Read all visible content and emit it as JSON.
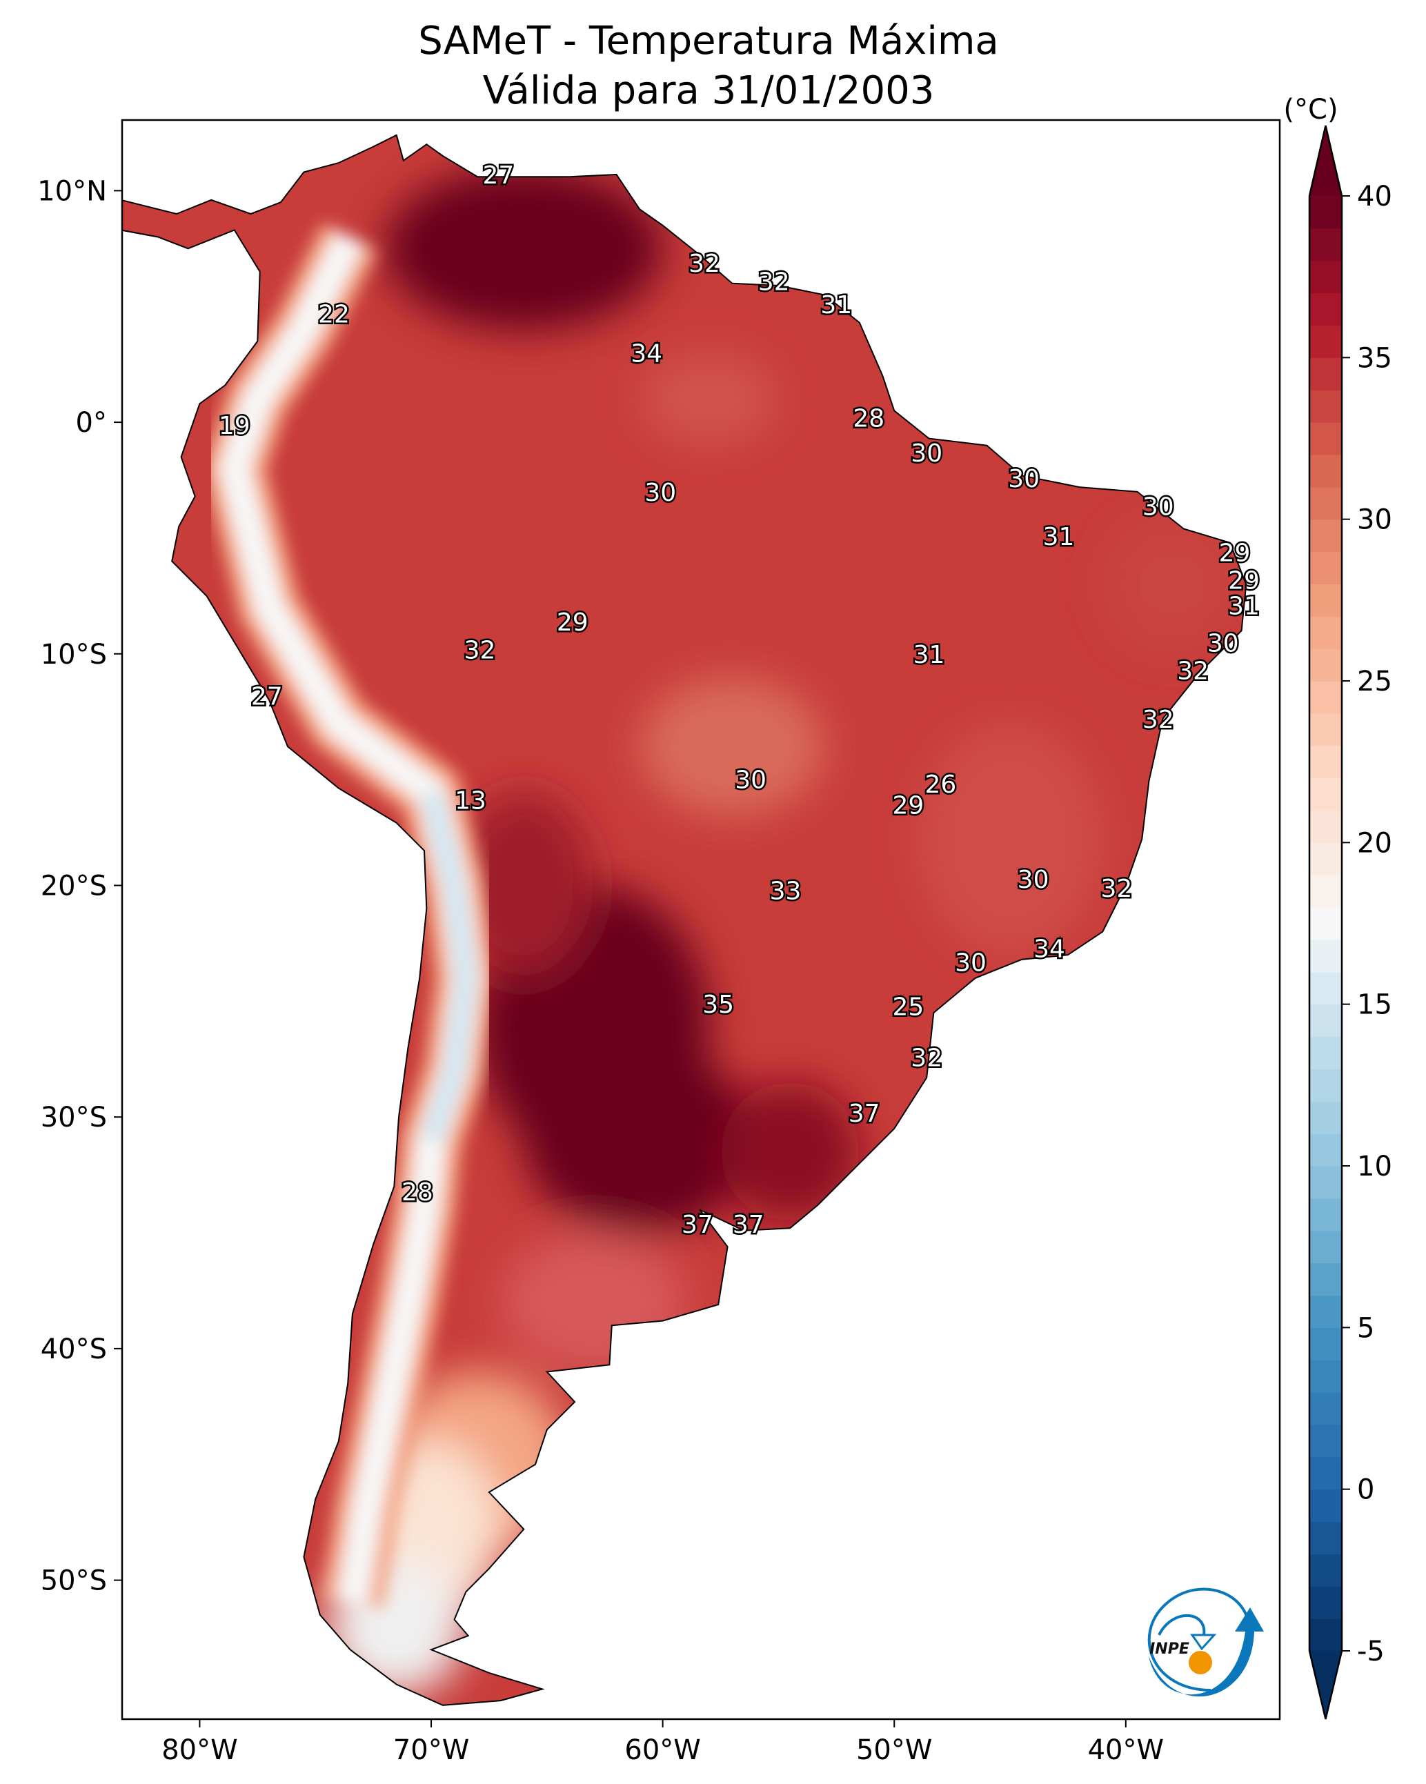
{
  "title_line1": "SAMeT - Temperatura Máxima",
  "title_line2": "Válida para 31/01/2003",
  "colorbar": {
    "unit_label": "(°C)",
    "min": -5,
    "max": 40,
    "extend": "both",
    "ticks": [
      -5,
      0,
      5,
      10,
      15,
      20,
      25,
      30,
      35,
      40
    ],
    "tick_labels": [
      "-5",
      "0",
      "5",
      "10",
      "15",
      "20",
      "25",
      "30",
      "35",
      "40"
    ]
  },
  "map": {
    "lon_range": [
      -83.35,
      -33.35
    ],
    "lat_range": [
      -56.0,
      13.05
    ],
    "lon_ticks": [
      -80,
      -70,
      -60,
      -50,
      -40
    ],
    "lon_tick_labels": [
      "80°W",
      "70°W",
      "60°W",
      "50°W",
      "40°W"
    ],
    "lat_ticks": [
      10,
      0,
      -10,
      -20,
      -30,
      -40,
      -50
    ],
    "lat_tick_labels": [
      "10°N",
      "0°",
      "10°S",
      "20°S",
      "30°S",
      "40°S",
      "50°S"
    ],
    "colors": {
      "hot": "#67001f",
      "warm": "#c0393b",
      "mild": "#f4a582",
      "neutral": "#f7f7f7",
      "cool": "#d1e5f0",
      "cold": "#4393c3"
    }
  },
  "station_labels": [
    {
      "v": "27",
      "lon": -67.1,
      "lat": 10.6
    },
    {
      "v": "32",
      "lon": -58.2,
      "lat": 6.8
    },
    {
      "v": "32",
      "lon": -55.2,
      "lat": 6.0
    },
    {
      "v": "31",
      "lon": -52.5,
      "lat": 5.0
    },
    {
      "v": "22",
      "lon": -74.2,
      "lat": 4.6
    },
    {
      "v": "34",
      "lon": -60.7,
      "lat": 2.9
    },
    {
      "v": "19",
      "lon": -78.5,
      "lat": -0.2
    },
    {
      "v": "28",
      "lon": -51.1,
      "lat": 0.1
    },
    {
      "v": "30",
      "lon": -48.6,
      "lat": -1.4
    },
    {
      "v": "30",
      "lon": -60.1,
      "lat": -3.1
    },
    {
      "v": "30",
      "lon": -44.4,
      "lat": -2.5
    },
    {
      "v": "30",
      "lon": -38.6,
      "lat": -3.7
    },
    {
      "v": "31",
      "lon": -42.9,
      "lat": -5.0
    },
    {
      "v": "29",
      "lon": -35.3,
      "lat": -5.7
    },
    {
      "v": "29",
      "lon": -34.9,
      "lat": -6.9
    },
    {
      "v": "31",
      "lon": -34.9,
      "lat": -8.0
    },
    {
      "v": "29",
      "lon": -63.9,
      "lat": -8.7
    },
    {
      "v": "30",
      "lon": -35.8,
      "lat": -9.6
    },
    {
      "v": "32",
      "lon": -67.9,
      "lat": -9.9
    },
    {
      "v": "31",
      "lon": -48.5,
      "lat": -10.1
    },
    {
      "v": "32",
      "lon": -37.1,
      "lat": -10.8
    },
    {
      "v": "27",
      "lon": -77.1,
      "lat": -11.9
    },
    {
      "v": "32",
      "lon": -38.6,
      "lat": -12.9
    },
    {
      "v": "30",
      "lon": -56.2,
      "lat": -15.5
    },
    {
      "v": "26",
      "lon": -48.0,
      "lat": -15.7
    },
    {
      "v": "13",
      "lon": -68.3,
      "lat": -16.4
    },
    {
      "v": "29",
      "lon": -49.4,
      "lat": -16.6
    },
    {
      "v": "30",
      "lon": -44.0,
      "lat": -19.8
    },
    {
      "v": "32",
      "lon": -40.4,
      "lat": -20.2
    },
    {
      "v": "33",
      "lon": -54.7,
      "lat": -20.3
    },
    {
      "v": "34",
      "lon": -43.3,
      "lat": -22.8
    },
    {
      "v": "30",
      "lon": -46.7,
      "lat": -23.4
    },
    {
      "v": "35",
      "lon": -57.6,
      "lat": -25.2
    },
    {
      "v": "25",
      "lon": -49.4,
      "lat": -25.3
    },
    {
      "v": "32",
      "lon": -48.6,
      "lat": -27.5
    },
    {
      "v": "37",
      "lon": -51.3,
      "lat": -29.9
    },
    {
      "v": "28",
      "lon": -70.6,
      "lat": -33.3
    },
    {
      "v": "37",
      "lon": -58.5,
      "lat": -34.7
    },
    {
      "v": "37",
      "lon": -56.3,
      "lat": -34.7
    }
  ],
  "logo": {
    "text": "INPE",
    "blue": "#0a77bb",
    "orange": "#f29400"
  }
}
